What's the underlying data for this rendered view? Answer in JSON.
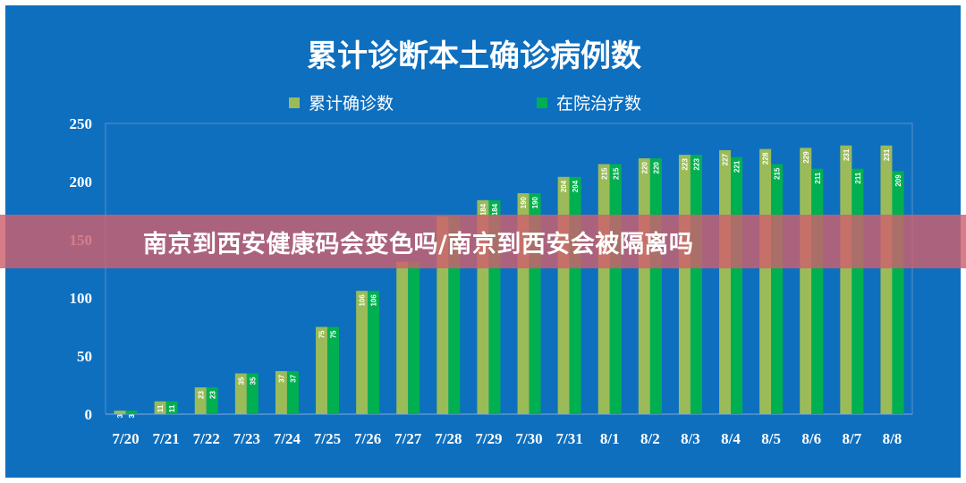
{
  "chart_data": {
    "type": "bar",
    "title": "累计诊断本土确诊病例数",
    "categories": [
      "7/20",
      "7/21",
      "7/22",
      "7/23",
      "7/24",
      "7/25",
      "7/26",
      "7/27",
      "7/28",
      "7/29",
      "7/30",
      "7/31",
      "8/1",
      "8/2",
      "8/3",
      "8/4",
      "8/5",
      "8/6",
      "8/7",
      "8/8"
    ],
    "series": [
      {
        "name": "累计确诊数",
        "color": "#9bbb59",
        "values": [
          3,
          11,
          23,
          35,
          37,
          75,
          106,
          131,
          170,
          184,
          190,
          204,
          215,
          220,
          223,
          227,
          228,
          229,
          231,
          231
        ],
        "labels": [
          "3",
          "11",
          "23",
          "35",
          "37",
          "75",
          "106",
          "",
          "",
          "184",
          "190",
          "204",
          "215",
          "220",
          "223",
          "227",
          "228",
          "229",
          "231",
          "231"
        ]
      },
      {
        "name": "在院治疗数",
        "color": "#00b050",
        "values": [
          3,
          11,
          23,
          35,
          37,
          75,
          106,
          131,
          170,
          184,
          190,
          204,
          215,
          220,
          223,
          221,
          215,
          211,
          211,
          209
        ],
        "labels": [
          "3",
          "11",
          "23",
          "35",
          "37",
          "75",
          "106",
          "",
          "",
          "184",
          "190",
          "204",
          "215",
          "220",
          "223",
          "221",
          "215",
          "211",
          "211",
          "209"
        ]
      }
    ],
    "ylim": [
      0,
      250
    ],
    "yticks": [
      "0",
      "50",
      "100",
      "150",
      "200",
      "250"
    ],
    "grid": false,
    "legend": "top-center",
    "xlabel": "",
    "ylabel": ""
  },
  "banner": {
    "text": "南京到西安健康码会变色吗/南京到西安会被隔离吗"
  },
  "colors": {
    "background": "#0e6fbf",
    "banner": "#ce606e"
  }
}
